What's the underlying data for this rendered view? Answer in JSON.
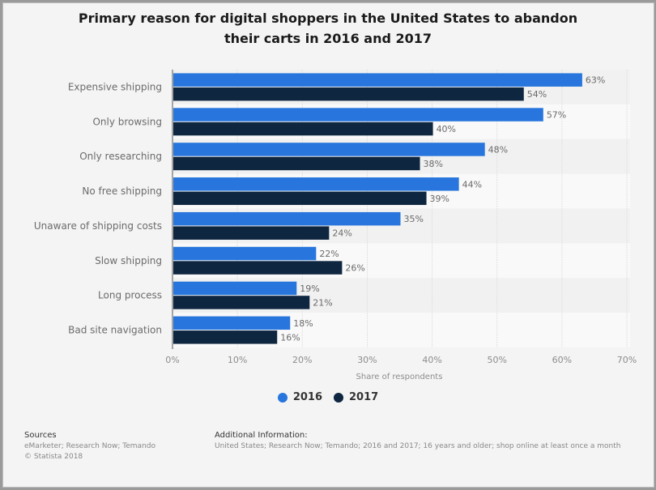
{
  "chart_data": {
    "type": "bar",
    "orientation": "horizontal",
    "title": "Primary reason for digital shoppers in the United States to abandon their carts in 2016 and 2017",
    "categories": [
      "Expensive shipping",
      "Only browsing",
      "Only researching",
      "No free shipping",
      "Unaware of shipping costs",
      "Slow shipping",
      "Long process",
      "Bad site navigation"
    ],
    "series": [
      {
        "name": "2016",
        "color": "#2876dd",
        "values": [
          63,
          57,
          48,
          44,
          35,
          22,
          19,
          18
        ]
      },
      {
        "name": "2017",
        "color": "#0f2640",
        "values": [
          54,
          40,
          38,
          39,
          24,
          26,
          21,
          16
        ]
      }
    ],
    "value_suffix": "%",
    "xlabel": "Share of respondents",
    "ylabel": "",
    "xlim": [
      0,
      70
    ],
    "xticks": [
      "0%",
      "10%",
      "20%",
      "30%",
      "40%",
      "50%",
      "60%",
      "70%"
    ],
    "grid": true,
    "legend": "bottom-center"
  },
  "footer": {
    "sources_title": "Sources",
    "sources_text": "eMarketer; Research Now; Temando",
    "copyright": "© Statista 2018",
    "additional_title": "Additional Information:",
    "additional_text": "United States; Research Now; Temando; 2016 and 2017; 16 years and older; shop online at least once a month"
  }
}
